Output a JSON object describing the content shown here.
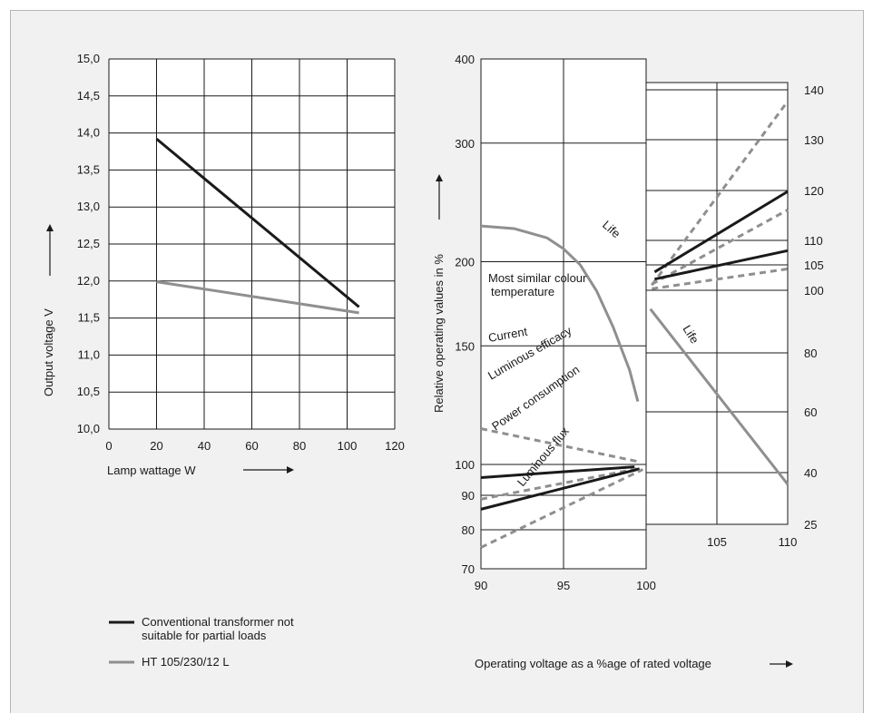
{
  "legend": [
    {
      "label_lines": [
        "Conventional transformer not",
        "suitable for partial loads"
      ],
      "color": "#1a1a1a"
    },
    {
      "label_lines": [
        "HT 105/230/12   L"
      ],
      "color": "#8e8f91"
    }
  ],
  "chart_data": [
    {
      "type": "line",
      "xlabel": "Lamp wattage W",
      "ylabel": "Output voltage V",
      "xlim": [
        0,
        120
      ],
      "ylim": [
        10.0,
        15.0
      ],
      "x_ticks": [
        "0",
        "20",
        "40",
        "60",
        "80",
        "100",
        "120"
      ],
      "y_ticks": [
        "10,0",
        "10,5",
        "11,0",
        "11,5",
        "12,0",
        "12,5",
        "13,0",
        "13,5",
        "14,0",
        "14,5",
        "15,0"
      ],
      "grid": true,
      "series": [
        {
          "x": [
            20,
            105
          ],
          "y": [
            13.92,
            11.65
          ],
          "color": "#1a1a1a",
          "style": "solid"
        },
        {
          "x": [
            20,
            105
          ],
          "y": [
            11.99,
            11.57
          ],
          "color": "#8e8f91",
          "style": "solid"
        }
      ]
    },
    {
      "type": "line",
      "xlabel": "Operating voltage as a %age of rated voltage",
      "ylabel": "Relative operating values in %",
      "scale": "log",
      "xlim": [
        90,
        100
      ],
      "ylim": [
        70,
        400
      ],
      "x_ticks": [
        "90",
        "95",
        "100"
      ],
      "y_ticks": [
        "70",
        "80",
        "90",
        "100",
        "150",
        "200",
        "300",
        "400"
      ],
      "grid": true,
      "series": [
        {
          "name": "Life",
          "x": [
            90,
            92,
            94,
            95,
            96,
            97,
            98,
            99,
            99.5
          ],
          "y": [
            226,
            224,
            217,
            209,
            198,
            181,
            160,
            138,
            124
          ],
          "color": "#8e8f91",
          "style": "solid"
        },
        {
          "name": "Most similar colour temperature",
          "x": [
            90,
            99.5
          ],
          "y": [
            113,
            101
          ],
          "color": "#8e8f91",
          "style": "dashed"
        },
        {
          "name": "Current",
          "x": [
            90,
            99.3
          ],
          "y": [
            95.6,
            99.2
          ],
          "color": "#1a1a1a",
          "style": "solid"
        },
        {
          "name": "Luminous efficacy",
          "x": [
            90,
            99.5
          ],
          "y": [
            88.8,
            98.6
          ],
          "color": "#8e8f91",
          "style": "dashed"
        },
        {
          "name": "Power consumption",
          "x": [
            90,
            99.6
          ],
          "y": [
            85.8,
            98.5
          ],
          "color": "#1a1a1a",
          "style": "solid"
        },
        {
          "name": "Luminous flux",
          "x": [
            90,
            99.8
          ],
          "y": [
            75.3,
            98.3
          ],
          "color": "#8e8f91",
          "style": "dashed"
        }
      ]
    },
    {
      "type": "line",
      "xlim": [
        100,
        110
      ],
      "ylim": [
        25,
        140
      ],
      "x_ticks": [
        "105",
        "110"
      ],
      "y_ticks": [
        "25",
        "40",
        "60",
        "80",
        "100",
        "105",
        "110",
        "120",
        "130",
        "140"
      ],
      "grid": true,
      "series": [
        {
          "name": "Life",
          "x": [
            100.3,
            110
          ],
          "y": [
            94,
            36.6
          ],
          "color": "#8e8f91",
          "style": "solid"
        },
        {
          "x": [
            100.4,
            110
          ],
          "y": [
            101,
            137.7
          ],
          "color": "#8e8f91",
          "style": "dashed"
        },
        {
          "x": [
            100.6,
            110
          ],
          "y": [
            103.6,
            119.8
          ],
          "color": "#1a1a1a",
          "style": "solid"
        },
        {
          "x": [
            100.4,
            110
          ],
          "y": [
            101.2,
            116.1
          ],
          "color": "#8e8f91",
          "style": "dashed"
        },
        {
          "x": [
            100.6,
            110
          ],
          "y": [
            102.2,
            107.9
          ],
          "color": "#1a1a1a",
          "style": "solid"
        },
        {
          "x": [
            100.4,
            110
          ],
          "y": [
            100.3,
            104.2
          ],
          "color": "#8e8f91",
          "style": "dashed"
        }
      ]
    }
  ]
}
